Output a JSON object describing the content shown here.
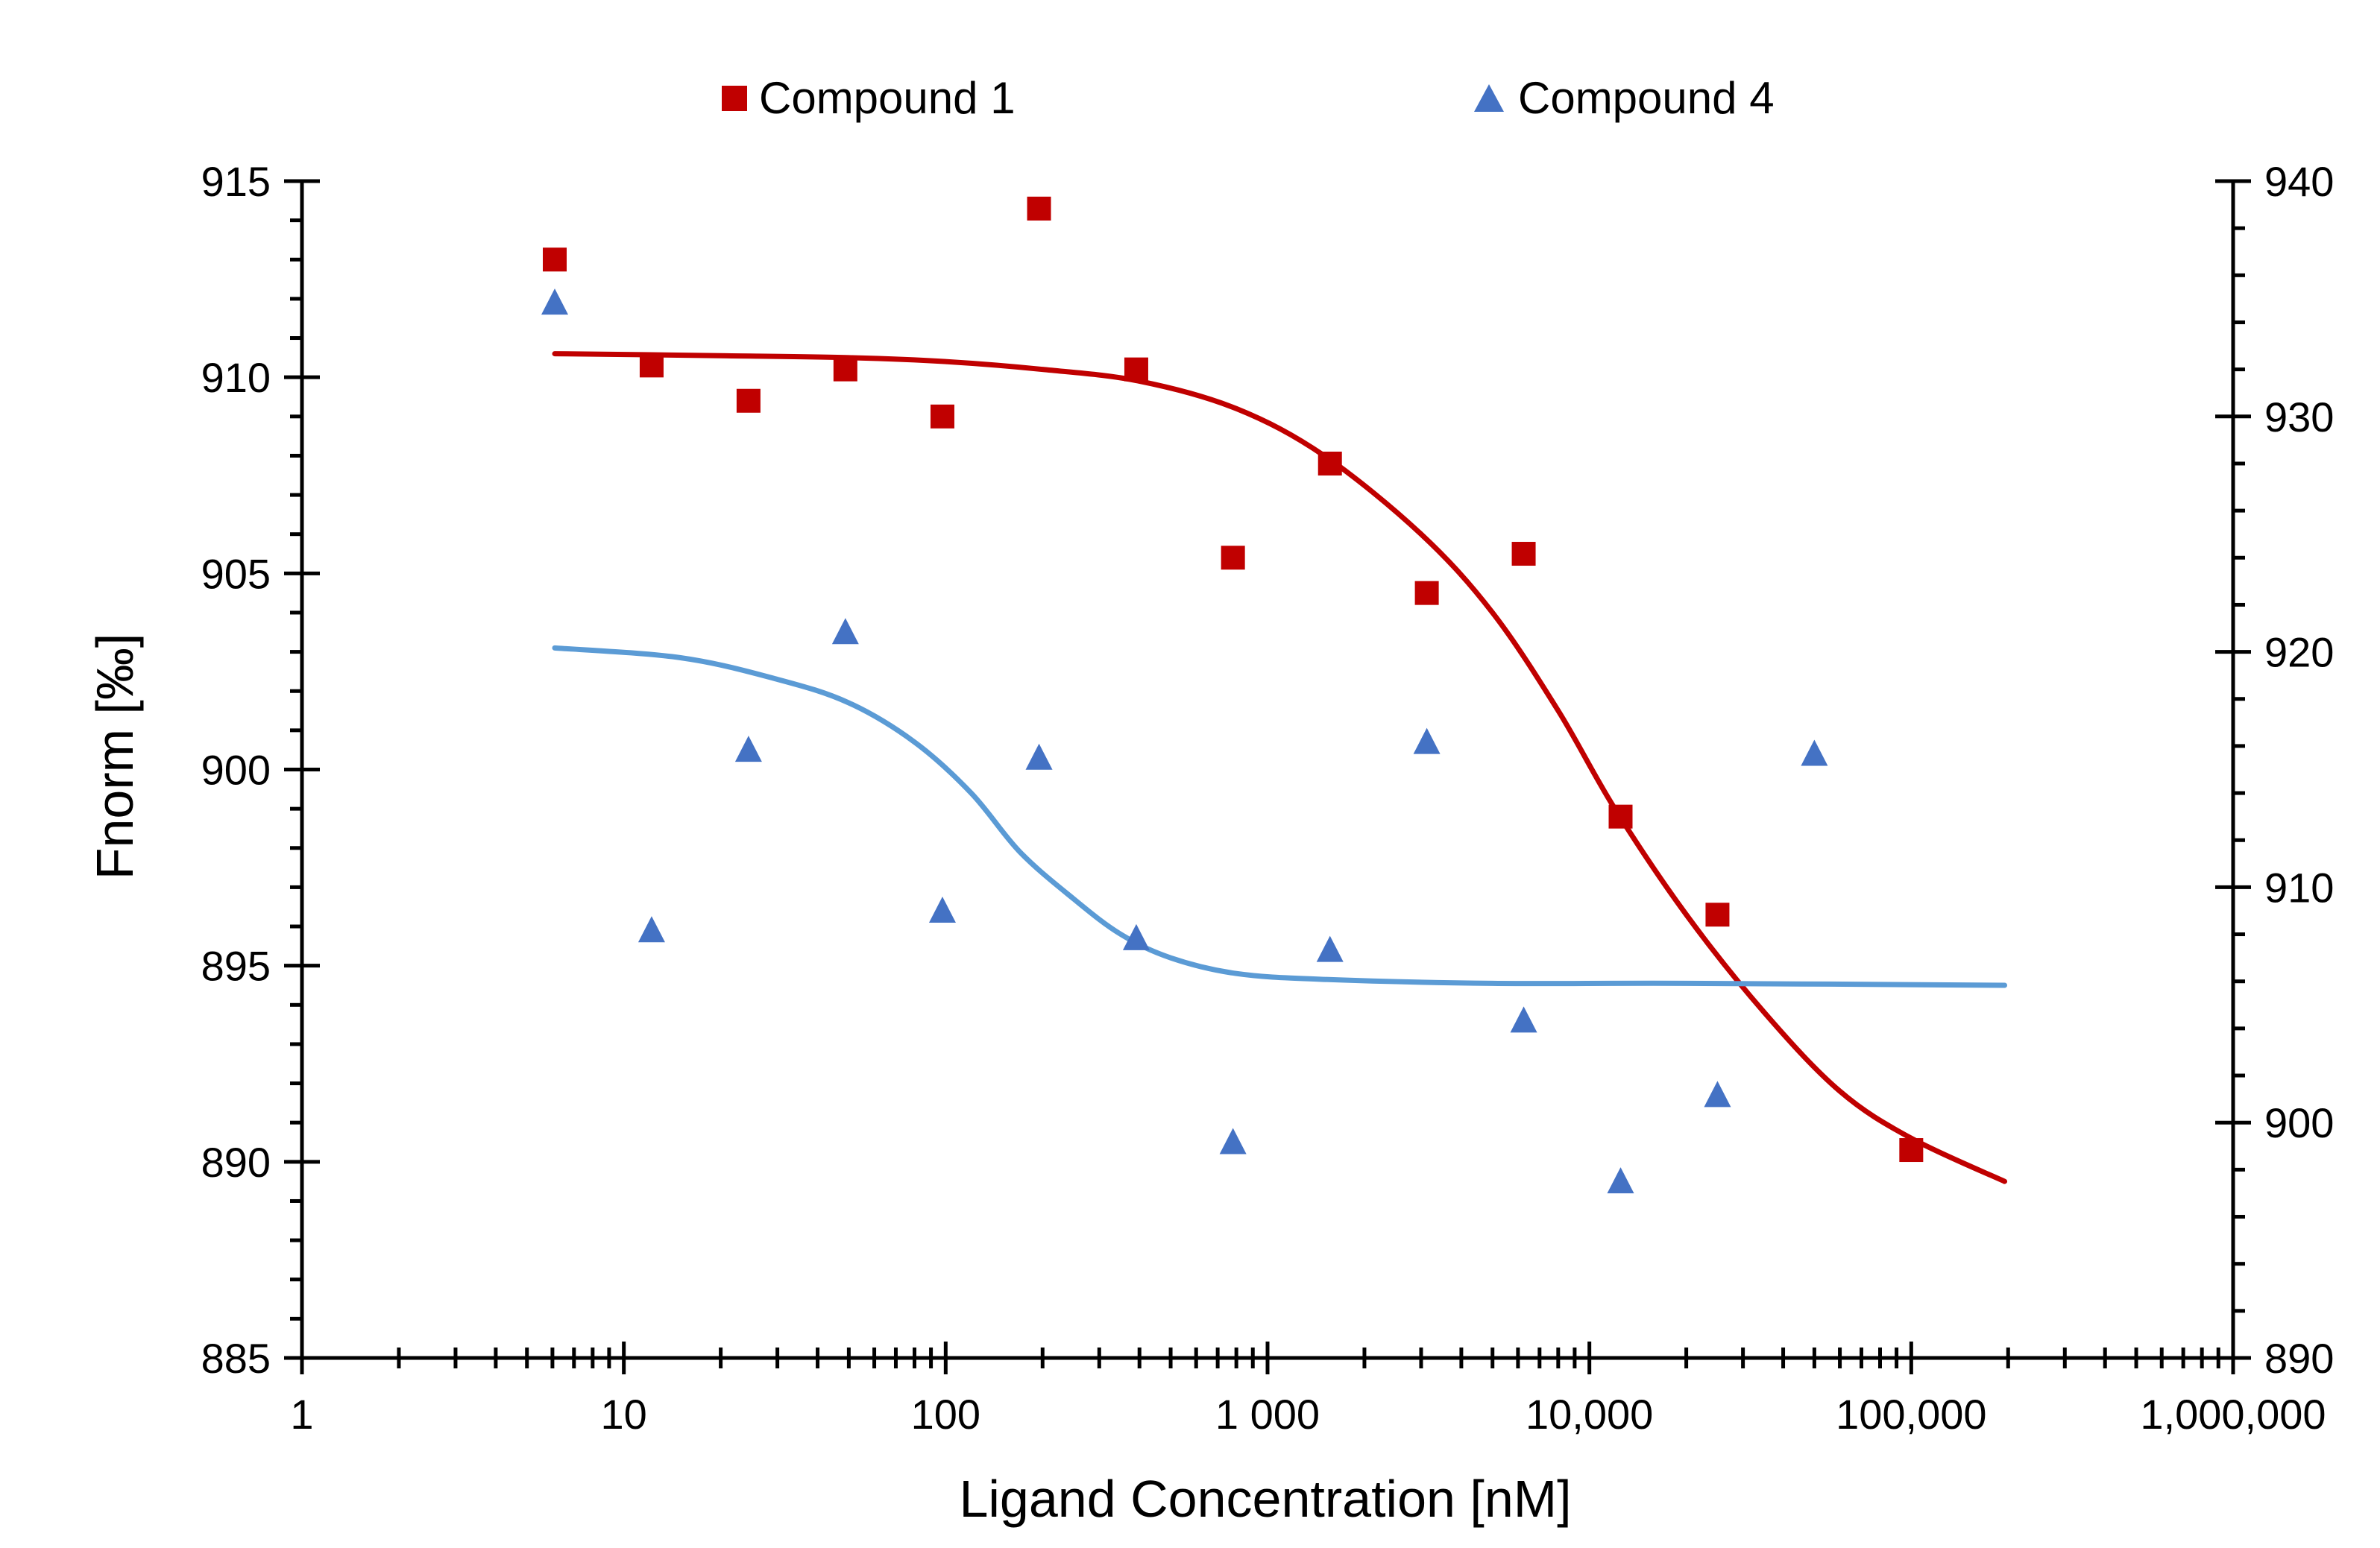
{
  "chart_data": {
    "type": "scatter",
    "title": "",
    "xlabel": "Ligand Concentration [nM]",
    "ylabel": "Fnorm [‰]",
    "x_scale": "log",
    "xlim": [
      1,
      1000000
    ],
    "ylim": [
      885,
      915
    ],
    "y2lim": [
      890,
      940
    ],
    "x_tick_labels": [
      "1",
      "10",
      "100",
      "1 000",
      "10,000",
      "100,000",
      "1,000,000"
    ],
    "y_tick_labels": [
      "885",
      "890",
      "895",
      "900",
      "905",
      "910",
      "915"
    ],
    "y2_tick_labels": [
      "890",
      "900",
      "910",
      "920",
      "930",
      "940"
    ],
    "legend_position": "top",
    "series": [
      {
        "name": "Compound 1",
        "marker": "square",
        "color": "#C00000",
        "axis": "left",
        "points": [
          [
            6.1,
            913.0
          ],
          [
            12.2,
            910.3
          ],
          [
            24.4,
            909.4
          ],
          [
            48.8,
            910.2
          ],
          [
            97.7,
            909.0
          ],
          [
            195,
            914.3
          ],
          [
            391,
            910.2
          ],
          [
            781,
            905.4
          ],
          [
            1563,
            907.8
          ],
          [
            3125,
            904.5
          ],
          [
            6250,
            905.5
          ],
          [
            12500,
            898.8
          ],
          [
            25000,
            896.3
          ],
          [
            100000,
            890.3
          ]
        ],
        "fit": [
          [
            6.1,
            910.6
          ],
          [
            20,
            910.55
          ],
          [
            50,
            910.5
          ],
          [
            100,
            910.4
          ],
          [
            200,
            910.2
          ],
          [
            400,
            909.9
          ],
          [
            800,
            909.2
          ],
          [
            1500,
            908.0
          ],
          [
            3000,
            906.0
          ],
          [
            5000,
            904.0
          ],
          [
            8000,
            901.5
          ],
          [
            12000,
            899.0
          ],
          [
            20000,
            896.3
          ],
          [
            35000,
            893.8
          ],
          [
            60000,
            891.8
          ],
          [
            100000,
            890.6
          ],
          [
            195000,
            889.5
          ]
        ]
      },
      {
        "name": "Compound 4",
        "marker": "triangle",
        "color": "#4472C4",
        "fit_color": "#5B9BD5",
        "axis": "left",
        "points": [
          [
            6.1,
            911.9
          ],
          [
            12.2,
            895.9
          ],
          [
            24.4,
            900.5
          ],
          [
            48.8,
            903.5
          ],
          [
            97.7,
            896.4
          ],
          [
            195,
            900.3
          ],
          [
            391,
            895.7
          ],
          [
            781,
            890.5
          ],
          [
            1563,
            895.4
          ],
          [
            3125,
            900.7
          ],
          [
            6250,
            893.6
          ],
          [
            12500,
            889.5
          ],
          [
            25000,
            891.7
          ],
          [
            50000,
            900.4
          ]
        ],
        "fit": [
          [
            6.1,
            903.1
          ],
          [
            15,
            902.85
          ],
          [
            30,
            902.3
          ],
          [
            50,
            901.7
          ],
          [
            80,
            900.7
          ],
          [
            120,
            899.4
          ],
          [
            170,
            897.9
          ],
          [
            250,
            896.7
          ],
          [
            350,
            895.8
          ],
          [
            500,
            895.2
          ],
          [
            800,
            894.8
          ],
          [
            1500,
            894.65
          ],
          [
            5000,
            894.55
          ],
          [
            20000,
            894.55
          ],
          [
            195000,
            894.5
          ]
        ]
      }
    ]
  }
}
